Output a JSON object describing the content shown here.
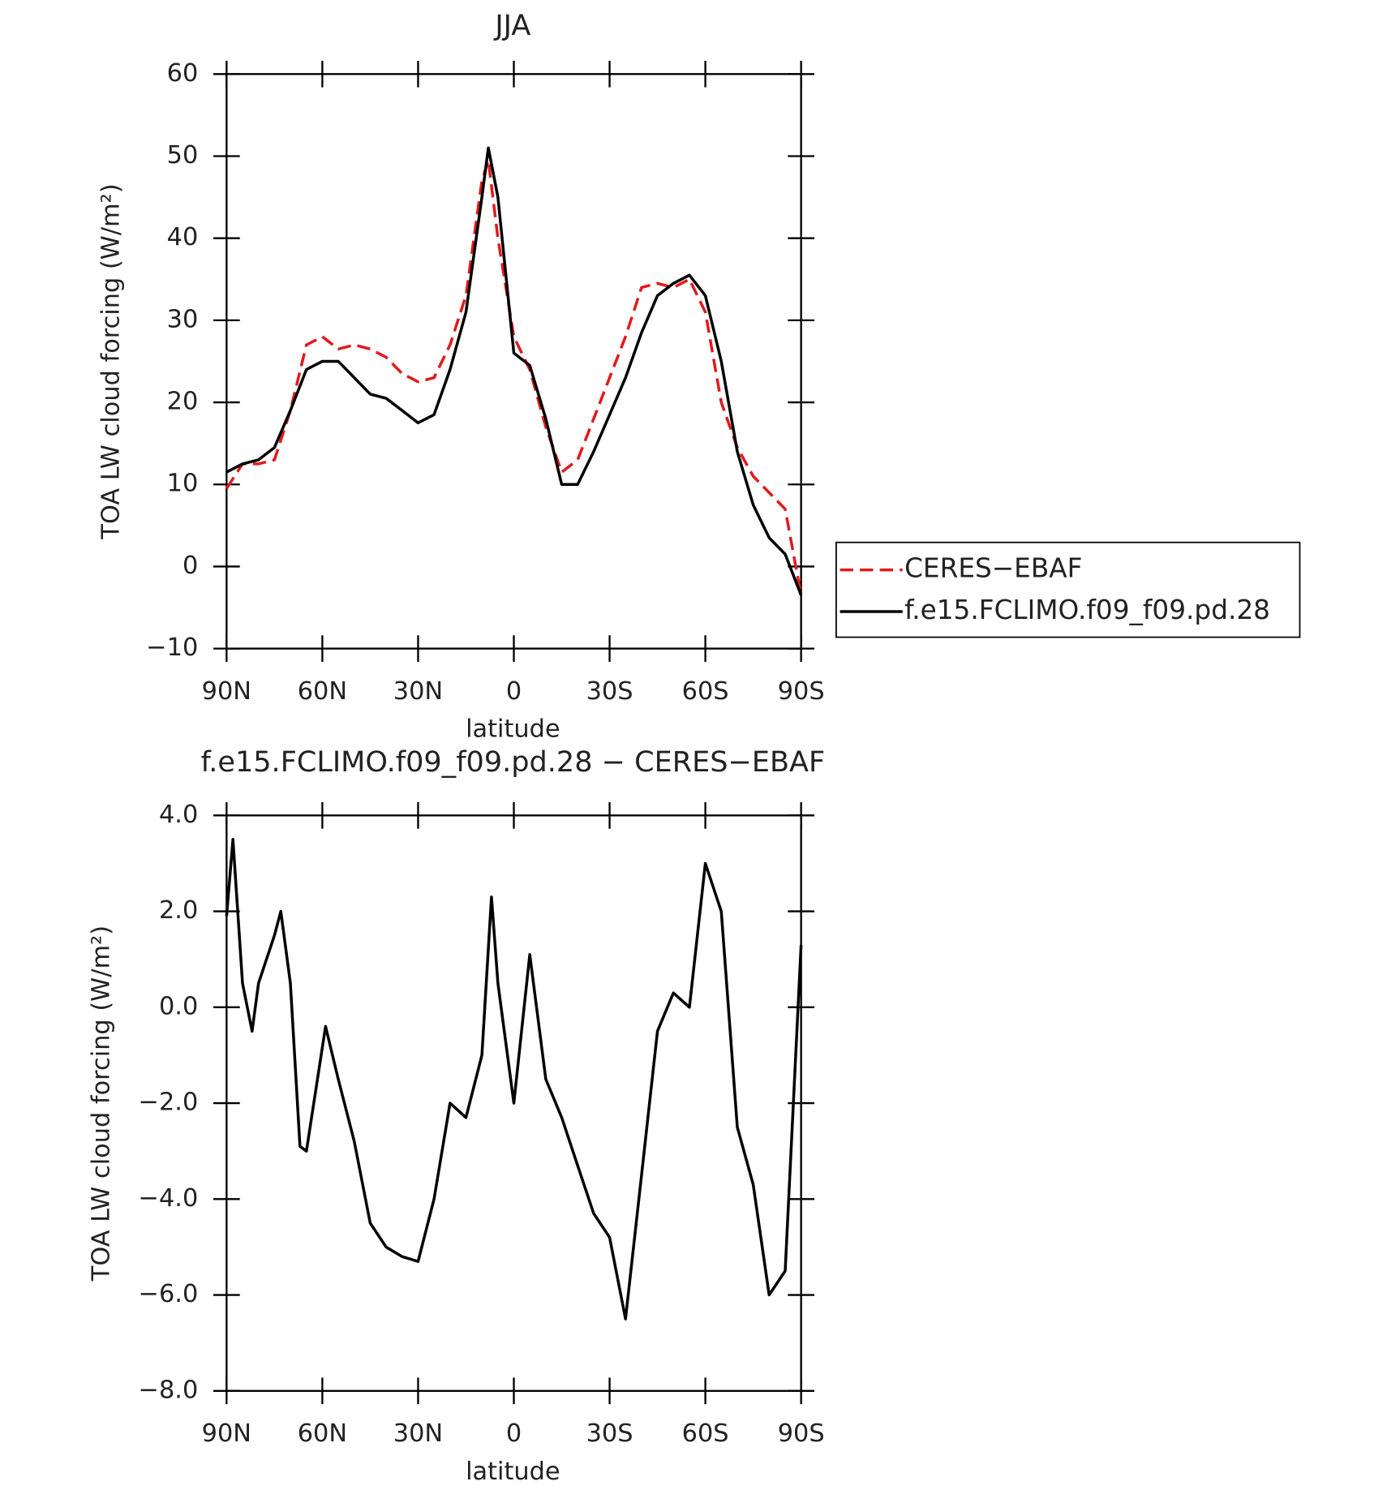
{
  "chart_data": [
    {
      "type": "line",
      "title": "JJA",
      "xlabel": "latitude",
      "ylabel": "TOA LW cloud forcing (W/m²)",
      "x": [
        90,
        85,
        80,
        75,
        70,
        65,
        60,
        55,
        50,
        45,
        40,
        35,
        30,
        25,
        20,
        15,
        10,
        8,
        5,
        0,
        -5,
        -10,
        -15,
        -20,
        -25,
        -30,
        -35,
        -40,
        -45,
        -50,
        -55,
        -60,
        -65,
        -70,
        -75,
        -80,
        -85,
        -90
      ],
      "xlim": [
        90,
        -90
      ],
      "xticks": [
        {
          "value": 90,
          "label": "90N"
        },
        {
          "value": 60,
          "label": "60N"
        },
        {
          "value": 30,
          "label": "30N"
        },
        0,
        {
          "value": -30,
          "label": "30S"
        },
        {
          "value": -60,
          "label": "60S"
        },
        {
          "value": -90,
          "label": "90S"
        }
      ],
      "ylim": [
        -10,
        60
      ],
      "yticks": [
        60,
        50,
        40,
        30,
        20,
        10,
        0,
        -10
      ],
      "legend": "right",
      "series": [
        {
          "name": "CERES-EBAF",
          "color": "#e31a1c",
          "dash": true,
          "values": [
            9.5,
            12.5,
            12.5,
            13,
            19,
            27,
            28,
            26.5,
            27,
            26.5,
            25.5,
            23.5,
            22.5,
            23,
            27,
            33,
            47,
            49.5,
            40,
            28,
            24,
            17,
            11.5,
            13,
            18,
            23,
            28,
            34,
            34.5,
            34,
            35,
            31,
            20,
            14.5,
            11,
            9,
            7,
            -3.5
          ]
        },
        {
          "name": "f.e15.FCLIMO.f09_f09.pd.28",
          "color": "#000000",
          "dash": false,
          "values": [
            11.5,
            12.5,
            13,
            14.5,
            19,
            24,
            25,
            25,
            23,
            21,
            20.5,
            19,
            17.5,
            18.5,
            24,
            31,
            45,
            51,
            45,
            26,
            24.5,
            18,
            10,
            10,
            14,
            18.5,
            23,
            28.5,
            33,
            34.5,
            35.5,
            33,
            25,
            14,
            7.5,
            3.5,
            1.5,
            -3.5
          ]
        }
      ]
    },
    {
      "type": "line",
      "title": "f.e15.FCLIMO.f09_f09.pd.28 - CERES-EBAF",
      "xlabel": "latitude",
      "ylabel": "TOA LW cloud forcing (W/m²)",
      "x": [
        90,
        88,
        85,
        82,
        80,
        75,
        73,
        70,
        67,
        65,
        59,
        55,
        50,
        45,
        40,
        35,
        30,
        25,
        20,
        15,
        10,
        7,
        5,
        0,
        -5,
        -10,
        -15,
        -20,
        -25,
        -30,
        -35,
        -40,
        -45,
        -50,
        -55,
        -60,
        -65,
        -70,
        -75,
        -80,
        -85,
        -90
      ],
      "xlim": [
        90,
        -90
      ],
      "xticks": [
        {
          "value": 90,
          "label": "90N"
        },
        {
          "value": 60,
          "label": "60N"
        },
        {
          "value": 30,
          "label": "30N"
        },
        0,
        {
          "value": -30,
          "label": "30S"
        },
        {
          "value": -60,
          "label": "60S"
        },
        {
          "value": -90,
          "label": "90S"
        }
      ],
      "ylim": [
        -8,
        4
      ],
      "yticks": [
        {
          "value": 4,
          "label": "4.0"
        },
        {
          "value": 2,
          "label": "2.0"
        },
        {
          "value": 0,
          "label": "0.0"
        },
        {
          "value": -2,
          "label": "-2.0"
        },
        {
          "value": -4,
          "label": "-4.0"
        },
        {
          "value": -6,
          "label": "-6.0"
        },
        {
          "value": -8,
          "label": "-8.0"
        }
      ],
      "series": [
        {
          "color": "#000000",
          "values": [
            1.9,
            3.5,
            0.5,
            -0.5,
            0.5,
            1.5,
            2.0,
            0.5,
            -2.9,
            -3.0,
            -0.4,
            -1.5,
            -2.8,
            -4.5,
            -5.0,
            -5.2,
            -5.3,
            -4.0,
            -2.0,
            -2.3,
            -1.0,
            2.3,
            0.5,
            -2.0,
            1.1,
            -1.5,
            -2.3,
            -3.3,
            -4.3,
            -4.8,
            -6.5,
            -3.5,
            -0.5,
            0.3,
            0.0,
            3.0,
            2.0,
            -2.5,
            -3.7,
            -6.0,
            -5.5,
            1.3
          ]
        }
      ]
    }
  ]
}
